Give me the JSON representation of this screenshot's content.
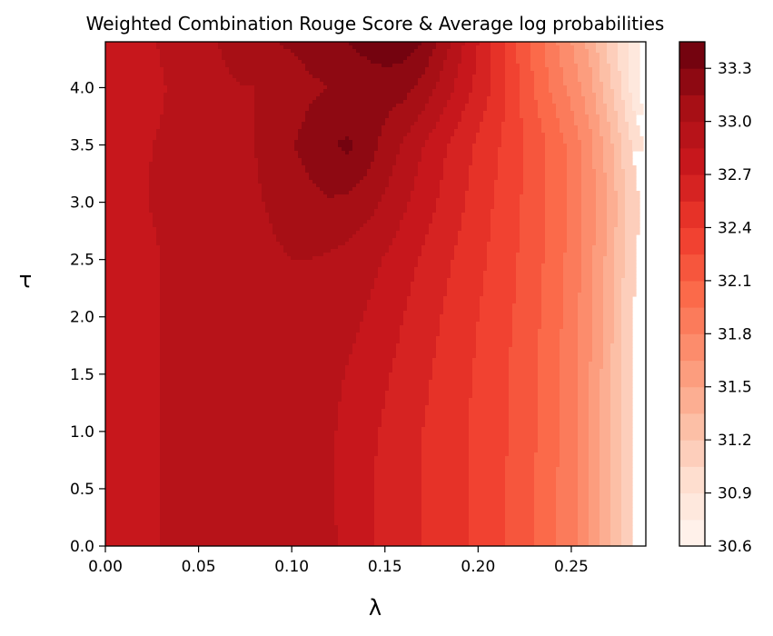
{
  "chart_data": {
    "type": "heatmap",
    "subtype": "filled-contour",
    "title": "Weighted Combination Rouge Score & Average log probabilities",
    "xlabel": "λ",
    "ylabel": "τ",
    "xlim": [
      0.0,
      0.29
    ],
    "ylim": [
      0.0,
      4.4
    ],
    "x_ticks": [
      "0.00",
      "0.05",
      "0.10",
      "0.15",
      "0.20",
      "0.25"
    ],
    "x_tick_values": [
      0.0,
      0.05,
      0.1,
      0.15,
      0.2,
      0.25
    ],
    "y_ticks": [
      "0.0",
      "0.5",
      "1.0",
      "1.5",
      "2.0",
      "2.5",
      "3.0",
      "3.5",
      "4.0"
    ],
    "y_tick_values": [
      0.0,
      0.5,
      1.0,
      1.5,
      2.0,
      2.5,
      3.0,
      3.5,
      4.0
    ],
    "colormap": "Reds",
    "colorbar": {
      "min": 30.6,
      "max": 33.45,
      "levels": 19,
      "tick_labels": [
        "30.6",
        "30.9",
        "31.2",
        "31.5",
        "31.8",
        "32.1",
        "32.4",
        "32.7",
        "33.0",
        "33.3"
      ],
      "tick_values": [
        30.6,
        30.9,
        31.2,
        31.5,
        31.8,
        32.1,
        32.4,
        32.7,
        33.0,
        33.3
      ]
    },
    "x": [
      0.0,
      0.01,
      0.02,
      0.03,
      0.04,
      0.05,
      0.06,
      0.07,
      0.08,
      0.09,
      0.1,
      0.11,
      0.12,
      0.13,
      0.14,
      0.15,
      0.16,
      0.17,
      0.18,
      0.19,
      0.2,
      0.21,
      0.22,
      0.23,
      0.24,
      0.25,
      0.26,
      0.27,
      0.28,
      0.29
    ],
    "y": [
      0.0,
      0.5,
      1.0,
      1.5,
      2.0,
      2.5,
      3.0,
      3.5,
      4.0,
      4.4
    ],
    "z": [
      [
        32.7,
        32.78,
        32.82,
        32.85,
        32.87,
        32.9,
        32.92,
        32.94,
        32.95,
        32.96,
        32.97,
        32.96,
        32.9,
        32.78,
        32.72,
        32.66,
        32.6,
        32.55,
        32.5,
        32.43,
        32.36,
        32.29,
        32.2,
        32.1,
        31.98,
        31.85,
        31.65,
        31.4,
        31.1,
        30.95
      ],
      [
        32.7,
        32.78,
        32.82,
        32.85,
        32.87,
        32.9,
        32.92,
        32.94,
        32.95,
        32.96,
        32.97,
        32.95,
        32.88,
        32.78,
        32.72,
        32.66,
        32.6,
        32.55,
        32.5,
        32.43,
        32.36,
        32.29,
        32.2,
        32.1,
        31.98,
        31.85,
        31.65,
        31.4,
        31.1,
        30.92
      ],
      [
        32.7,
        32.78,
        32.82,
        32.85,
        32.87,
        32.9,
        32.92,
        32.94,
        32.95,
        32.96,
        32.97,
        32.95,
        32.88,
        32.8,
        32.74,
        32.68,
        32.61,
        32.55,
        32.5,
        32.43,
        32.36,
        32.3,
        32.22,
        32.12,
        32.0,
        31.85,
        31.65,
        31.4,
        31.1,
        30.92
      ],
      [
        32.7,
        32.78,
        32.82,
        32.85,
        32.87,
        32.9,
        32.92,
        32.94,
        32.95,
        32.96,
        32.97,
        32.96,
        32.9,
        32.84,
        32.78,
        32.72,
        32.65,
        32.58,
        32.52,
        32.45,
        32.38,
        32.3,
        32.22,
        32.12,
        32.0,
        31.85,
        31.65,
        31.4,
        31.1,
        30.92
      ],
      [
        32.7,
        32.78,
        32.82,
        32.85,
        32.87,
        32.9,
        32.92,
        32.94,
        32.95,
        32.96,
        32.98,
        32.98,
        32.95,
        32.9,
        32.84,
        32.78,
        32.7,
        32.62,
        32.55,
        32.47,
        32.4,
        32.32,
        32.24,
        32.14,
        32.02,
        31.88,
        31.68,
        31.42,
        31.1,
        30.92
      ],
      [
        32.7,
        32.78,
        32.82,
        32.85,
        32.87,
        32.9,
        32.92,
        32.94,
        32.96,
        32.98,
        33.0,
        33.0,
        32.98,
        32.95,
        32.9,
        32.84,
        32.76,
        32.68,
        32.6,
        32.52,
        32.44,
        32.35,
        32.26,
        32.16,
        32.04,
        31.9,
        31.7,
        31.45,
        31.15,
        30.95
      ],
      [
        32.72,
        32.8,
        32.84,
        32.87,
        32.88,
        32.9,
        32.92,
        32.95,
        32.98,
        33.02,
        33.06,
        33.1,
        33.14,
        33.12,
        33.06,
        32.98,
        32.88,
        32.78,
        32.68,
        32.58,
        32.48,
        32.38,
        32.28,
        32.18,
        32.06,
        31.92,
        31.72,
        31.48,
        31.18,
        30.98
      ],
      [
        32.75,
        32.8,
        32.84,
        32.86,
        32.88,
        32.9,
        32.92,
        32.96,
        33.0,
        33.06,
        33.14,
        33.22,
        33.28,
        33.33,
        33.24,
        33.1,
        32.98,
        32.86,
        32.74,
        32.63,
        32.52,
        32.42,
        32.3,
        32.18,
        32.06,
        31.9,
        31.7,
        31.42,
        31.1,
        30.88
      ],
      [
        32.7,
        32.76,
        32.8,
        32.84,
        32.88,
        32.92,
        32.96,
        32.99,
        33.0,
        33.02,
        33.05,
        33.12,
        33.15,
        33.16,
        33.2,
        33.22,
        33.2,
        33.1,
        32.96,
        32.8,
        32.65,
        32.5,
        32.3,
        32.1,
        31.92,
        31.75,
        31.55,
        31.25,
        30.95,
        30.6
      ],
      [
        32.72,
        32.78,
        32.82,
        32.86,
        32.9,
        32.95,
        33.0,
        33.06,
        33.1,
        33.14,
        33.18,
        33.22,
        33.26,
        33.3,
        33.36,
        33.4,
        33.38,
        33.3,
        33.1,
        32.9,
        32.7,
        32.5,
        32.25,
        32.05,
        31.85,
        31.65,
        31.45,
        31.15,
        30.9,
        30.7
      ]
    ]
  }
}
